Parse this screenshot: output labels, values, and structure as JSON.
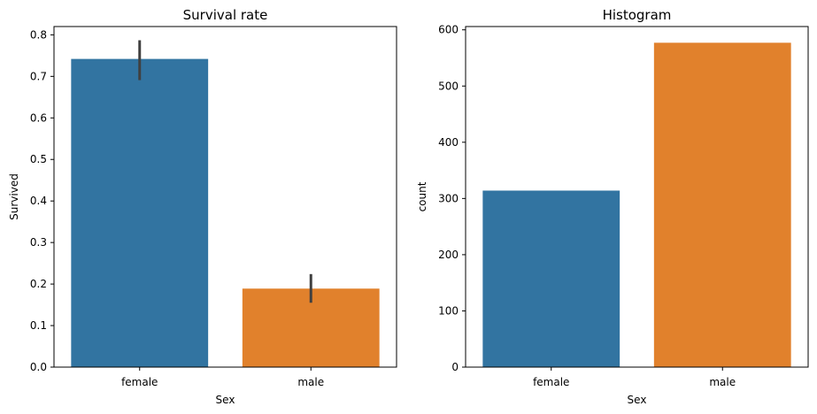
{
  "chart_data": [
    {
      "type": "bar",
      "title": "Survival rate",
      "xlabel": "Sex",
      "ylabel": "Survived",
      "categories": [
        "female",
        "male"
      ],
      "values": [
        0.742,
        0.189
      ],
      "error_low": [
        0.691,
        0.155
      ],
      "error_high": [
        0.787,
        0.224
      ],
      "ylim": [
        0,
        0.82
      ],
      "yticks": [
        0.0,
        0.1,
        0.2,
        0.3,
        0.4,
        0.5,
        0.6,
        0.7,
        0.8
      ],
      "ytick_labels": [
        "0.0",
        "0.1",
        "0.2",
        "0.3",
        "0.4",
        "0.5",
        "0.6",
        "0.7",
        "0.8"
      ],
      "colors": [
        "#3274a1",
        "#e1812c"
      ],
      "grid": false
    },
    {
      "type": "bar",
      "title": "Histogram",
      "xlabel": "Sex",
      "ylabel": "count",
      "categories": [
        "female",
        "male"
      ],
      "values": [
        314,
        577
      ],
      "ylim": [
        0,
        605.85
      ],
      "yticks": [
        0,
        100,
        200,
        300,
        400,
        500,
        600
      ],
      "ytick_labels": [
        "0",
        "100",
        "200",
        "300",
        "400",
        "500",
        "600"
      ],
      "colors": [
        "#3274a1",
        "#e1812c"
      ],
      "grid": false
    }
  ]
}
